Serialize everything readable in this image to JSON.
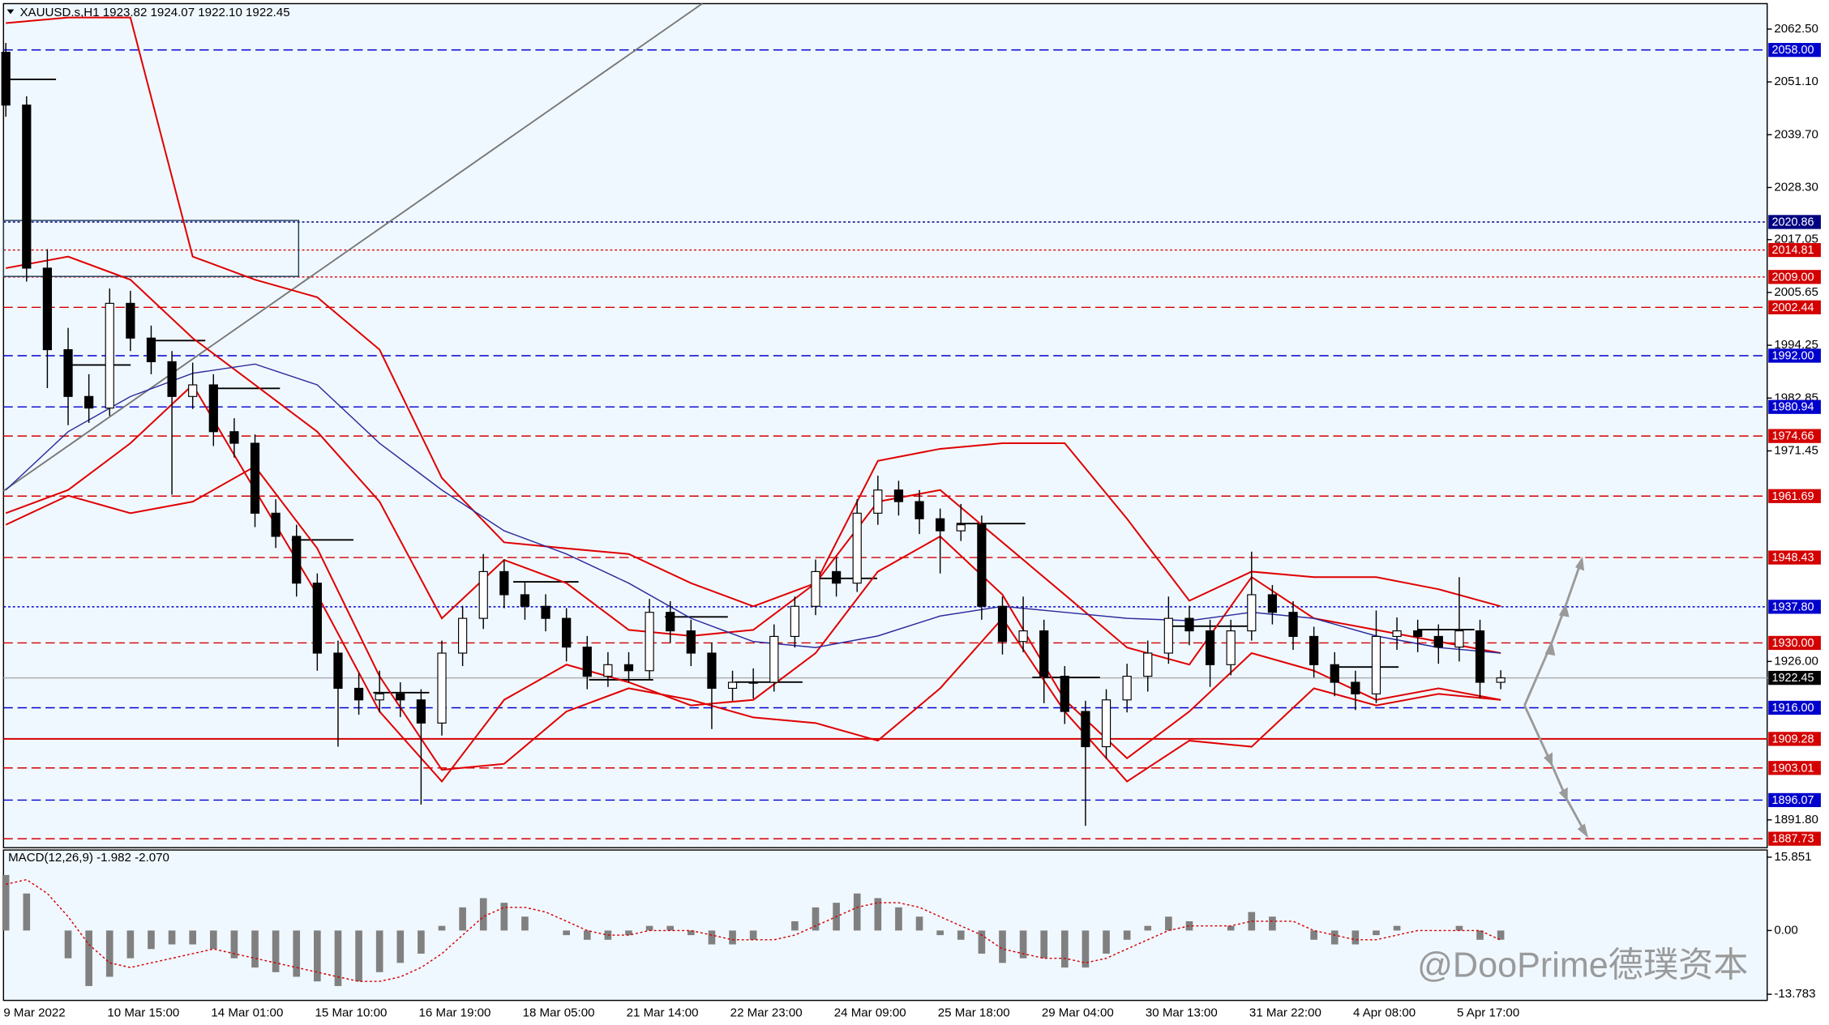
{
  "header": "XAUUSD.s,H1  1923.82 1924.07 1922.10 1922.45",
  "watermark": "@DooPrime德璞资本",
  "chart_data": [
    {
      "type": "candlestick",
      "categories": [
        "9 Mar 2022",
        null,
        null,
        null,
        null,
        "10 Mar 15:00",
        null,
        null,
        null,
        null,
        "14 Mar 01:00",
        null,
        null,
        null,
        null,
        "15 Mar 10:00",
        null,
        null,
        null,
        null,
        "16 Mar 19:00",
        null,
        null,
        null,
        null,
        "18 Mar 05:00",
        null,
        null,
        null,
        null,
        "21 Mar 14:00",
        null,
        null,
        null,
        null,
        "22 Mar 23:00",
        null,
        null,
        null,
        null,
        "24 Mar 09:00",
        null,
        null,
        null,
        null,
        "25 Mar 18:00",
        null,
        null,
        null,
        null,
        "29 Mar 04:00",
        null,
        null,
        null,
        null,
        "30 Mar 13:00",
        null,
        null,
        null,
        null,
        "31 Mar 22:00",
        null,
        null,
        null,
        null,
        "4 Apr 08:00",
        null,
        null,
        null,
        null,
        "5 Apr 17:00",
        null,
        null
      ],
      "open": [
        2057.5,
        2046.1,
        2010.9,
        1993.3,
        1983.2,
        1980.7,
        2003.3,
        1995.8,
        1990.7,
        1983.2,
        1985.7,
        1975.6,
        1973.1,
        1958.0,
        1953.0,
        1942.9,
        1927.8,
        1920.2,
        1917.7,
        1919.0,
        1917.7,
        1912.7,
        1927.8,
        1935.3,
        1945.4,
        1940.4,
        1937.9,
        1935.3,
        1929.1,
        1922.8,
        1925.3,
        1924.0,
        1936.6,
        1932.6,
        1927.8,
        1920.2,
        1921.5,
        1921.5,
        1931.4,
        1937.9,
        1945.4,
        1942.9,
        1958.0,
        1963.0,
        1960.5,
        1956.8,
        1954.2,
        1955.5,
        1937.9,
        1930.3,
        1932.6,
        1922.8,
        1915.2,
        1907.6,
        1917.7,
        1922.8,
        1927.8,
        1935.3,
        1932.6,
        1925.3,
        1932.6,
        1940.4,
        1936.6,
        1931.4,
        1925.3,
        1921.5,
        1919.0,
        1931.4,
        1932.6,
        1931.4,
        1929.1,
        1932.6,
        1921.5
      ],
      "high": [
        2059.5,
        2048.0,
        2015.0,
        1998.0,
        1988.0,
        2006.5,
        2006.0,
        1998.5,
        1993.0,
        1990.5,
        1988.0,
        1978.5,
        1975.0,
        1961.0,
        1955.5,
        1945.0,
        1930.5,
        1923.5,
        1924.0,
        1921.5,
        1920.0,
        1930.5,
        1938.0,
        1949.2,
        1948.0,
        1943.0,
        1940.5,
        1937.5,
        1931.5,
        1928.0,
        1928.0,
        1939.5,
        1939.0,
        1935.0,
        1930.0,
        1924.0,
        1924.5,
        1934.0,
        1940.0,
        1948.0,
        1948.5,
        1961.0,
        1966.1,
        1965.0,
        1963.0,
        1959.0,
        1960.0,
        1957.5,
        1940.0,
        1940.0,
        1935.0,
        1925.0,
        1917.5,
        1920.0,
        1925.5,
        1930.5,
        1940.0,
        1938.0,
        1935.0,
        1935.0,
        1949.7,
        1942.5,
        1939.0,
        1933.5,
        1928.0,
        1924.0,
        1937.0,
        1935.5,
        1935.0,
        1934.0,
        1944.2,
        1935.0,
        1924.1
      ],
      "low": [
        2043.6,
        2008.0,
        1985.0,
        1977.0,
        1977.5,
        1979.0,
        1993.0,
        1988.0,
        1962.0,
        1980.5,
        1972.5,
        1970.0,
        1955.0,
        1950.5,
        1940.0,
        1924.0,
        1907.6,
        1914.5,
        1915.0,
        1914.0,
        1895.1,
        1910.0,
        1925.0,
        1933.0,
        1937.5,
        1935.0,
        1932.5,
        1926.0,
        1920.0,
        1920.5,
        1921.5,
        1922.0,
        1930.0,
        1925.0,
        1911.4,
        1917.5,
        1918.0,
        1919.5,
        1929.0,
        1936.0,
        1940.0,
        1941.0,
        1955.5,
        1957.5,
        1953.5,
        1945.0,
        1952.0,
        1935.0,
        1927.5,
        1928.0,
        1917.0,
        1912.5,
        1890.5,
        1905.0,
        1915.0,
        1919.5,
        1925.5,
        1929.5,
        1920.5,
        1923.0,
        1930.5,
        1934.0,
        1928.5,
        1922.5,
        1918.5,
        1915.5,
        1917.0,
        1928.5,
        1928.0,
        1925.5,
        1926.0,
        1918.0,
        1920.0
      ],
      "close": [
        2046.1,
        2010.9,
        1993.3,
        1983.2,
        1980.7,
        2003.3,
        1995.8,
        1990.7,
        1983.2,
        1985.7,
        1975.6,
        1973.1,
        1958.0,
        1953.0,
        1942.9,
        1927.8,
        1920.2,
        1917.7,
        1919.0,
        1917.7,
        1912.7,
        1927.8,
        1935.3,
        1945.4,
        1940.4,
        1937.9,
        1935.3,
        1929.1,
        1922.8,
        1925.3,
        1924.0,
        1936.6,
        1932.6,
        1927.8,
        1920.2,
        1921.5,
        1921.5,
        1931.4,
        1937.9,
        1945.4,
        1942.9,
        1958.0,
        1963.0,
        1960.5,
        1956.8,
        1954.2,
        1955.5,
        1937.9,
        1930.3,
        1932.6,
        1922.8,
        1915.2,
        1907.6,
        1917.7,
        1922.8,
        1927.8,
        1935.3,
        1932.6,
        1925.3,
        1932.6,
        1940.4,
        1936.6,
        1931.4,
        1925.3,
        1921.5,
        1919.0,
        1931.4,
        1932.6,
        1931.4,
        1929.1,
        1932.6,
        1921.5,
        1922.45
      ],
      "up_color": "#ffffff",
      "down_color": "#000000",
      "ylim": [
        1885.8,
        2068.0
      ],
      "yticks": [
        {
          "value": 2062.5,
          "label": "2062.50"
        },
        {
          "value": 2051.1,
          "label": "2051.10"
        },
        {
          "value": 2039.7,
          "label": "2039.70"
        },
        {
          "value": 2028.3,
          "label": "2028.30"
        },
        {
          "value": 2017.05,
          "label": "2017.05"
        },
        {
          "value": 2005.65,
          "label": "2005.65"
        },
        {
          "value": 1994.25,
          "label": "1994.25"
        },
        {
          "value": 1982.85,
          "label": "1982.85"
        },
        {
          "value": 1971.45,
          "label": "1971.45"
        },
        {
          "value": 1926.0,
          "label": "1926.00"
        },
        {
          "value": 1891.8,
          "label": "1891.80"
        }
      ],
      "grid": false,
      "levels": [
        {
          "value": 2058.0,
          "label": "2058.00",
          "color": "#0000cd",
          "style": "dashed"
        },
        {
          "value": 2020.86,
          "label": "2020.86",
          "color": "#000080",
          "style": "dotted"
        },
        {
          "value": 2014.81,
          "label": "2014.81",
          "color": "#d40000",
          "style": "dotted"
        },
        {
          "value": 2009.0,
          "label": "2009.00",
          "color": "#d40000",
          "style": "dotted"
        },
        {
          "value": 2002.44,
          "label": "2002.44",
          "color": "#d40000",
          "style": "dashed"
        },
        {
          "value": 1992.0,
          "label": "1992.00",
          "color": "#0000cd",
          "style": "dashed"
        },
        {
          "value": 1980.94,
          "label": "1980.94",
          "color": "#0000cd",
          "style": "dashed"
        },
        {
          "value": 1974.66,
          "label": "1974.66",
          "color": "#d40000",
          "style": "dashed"
        },
        {
          "value": 1961.69,
          "label": "1961.69",
          "color": "#d40000",
          "style": "dashed"
        },
        {
          "value": 1948.43,
          "label": "1948.43",
          "color": "#d40000",
          "style": "dashed"
        },
        {
          "value": 1937.8,
          "label": "1937.80",
          "color": "#0000cd",
          "style": "dotted"
        },
        {
          "value": 1930.0,
          "label": "1930.00",
          "color": "#d40000",
          "style": "dashed"
        },
        {
          "value": 1922.45,
          "label": "1922.45",
          "color": "#000000",
          "style": "solid"
        },
        {
          "value": 1916.0,
          "label": "1916.00",
          "color": "#0000cd",
          "style": "dashed"
        },
        {
          "value": 1909.28,
          "label": "1909.28",
          "color": "#d40000",
          "style": "solid"
        },
        {
          "value": 1903.01,
          "label": "1903.01",
          "color": "#d40000",
          "style": "dashed"
        },
        {
          "value": 1896.07,
          "label": "1896.07",
          "color": "#0000cd",
          "style": "dashed"
        },
        {
          "value": 1887.73,
          "label": "1887.73",
          "color": "#d40000",
          "style": "dashed"
        }
      ],
      "overlays": [
        {
          "color": "#e00000",
          "x": [
            0,
            3,
            6,
            9,
            12,
            15,
            18,
            21,
            24,
            27,
            30,
            33,
            36,
            39,
            42,
            45,
            48,
            51,
            54,
            57,
            60,
            63,
            66,
            69,
            72
          ],
          "values": [
            2063.8,
            2065.0,
            2065.0,
            2013.4,
            2008.4,
            2004.6,
            1993.3,
            1965.6,
            1951.7,
            1950.4,
            1949.2,
            1942.9,
            1937.9,
            1942.9,
            1969.3,
            1971.9,
            1973.1,
            1973.1,
            1956.8,
            1939.1,
            1945.4,
            1944.2,
            1944.2,
            1941.6,
            1937.9
          ]
        },
        {
          "color": "#e00000",
          "x": [
            0,
            3,
            6,
            9,
            12,
            15,
            18,
            21,
            24,
            27,
            30,
            33,
            36,
            39,
            42,
            45,
            48,
            51,
            54,
            57,
            60,
            63,
            66,
            69,
            72
          ],
          "values": [
            1955.5,
            1961.8,
            1958.0,
            1960.5,
            1968.1,
            1950.4,
            1922.8,
            1902.6,
            1903.9,
            1915.2,
            1920.2,
            1917.7,
            1913.9,
            1912.7,
            1908.9,
            1920.2,
            1935.3,
            1915.2,
            1900.1,
            1908.9,
            1907.6,
            1920.2,
            1916.5,
            1919.0,
            1917.7
          ]
        },
        {
          "color": "#e00000",
          "x": [
            0,
            3,
            6,
            9,
            12,
            15,
            18,
            21,
            24,
            27,
            30,
            33,
            36,
            39,
            42,
            45,
            48,
            51,
            54,
            57,
            60,
            63,
            66,
            69,
            72
          ],
          "values": [
            2010.9,
            2013.4,
            2008.4,
            1995.8,
            1985.7,
            1975.6,
            1960.5,
            1935.3,
            1947.9,
            1942.9,
            1932.8,
            1931.5,
            1932.8,
            1942.9,
            1960.5,
            1963.0,
            1951.7,
            1940.4,
            1929.0,
            1925.3,
            1944.2,
            1935.3,
            1932.8,
            1930.3,
            1927.8
          ]
        },
        {
          "color": "#e00000",
          "x": [
            0,
            3,
            6,
            9,
            12,
            15,
            18,
            21,
            24,
            27,
            30,
            33,
            36,
            39,
            42,
            45,
            48,
            51,
            54,
            57,
            60,
            63,
            66,
            69,
            72
          ],
          "values": [
            1958.0,
            1963.0,
            1973.1,
            1985.7,
            1963.0,
            1940.4,
            1915.2,
            1900.1,
            1917.7,
            1925.3,
            1921.5,
            1916.5,
            1917.7,
            1927.8,
            1945.4,
            1953.0,
            1940.4,
            1917.7,
            1905.1,
            1915.2,
            1927.8,
            1924.0,
            1917.7,
            1920.2,
            1917.7
          ]
        },
        {
          "color": "#2b2b9c",
          "x": [
            0,
            3,
            6,
            9,
            12,
            15,
            18,
            21,
            24,
            27,
            30,
            33,
            36,
            39,
            42,
            45,
            48,
            51,
            54,
            57,
            60,
            63,
            66,
            69,
            72
          ],
          "values": [
            1963.0,
            1975.6,
            1983.2,
            1988.2,
            1990.2,
            1985.7,
            1973.1,
            1963.0,
            1954.2,
            1949.2,
            1942.9,
            1935.3,
            1930.3,
            1929.0,
            1931.5,
            1935.8,
            1937.9,
            1936.6,
            1935.3,
            1934.8,
            1936.6,
            1935.3,
            1931.5,
            1929.0,
            1927.8
          ]
        }
      ]
    },
    {
      "type": "macd",
      "title": "MACD(12,26,9) -1.982 -2.070",
      "values": [
        12,
        8,
        0,
        -6,
        -12,
        -10,
        -6,
        -4,
        -3,
        -3,
        -4,
        -6,
        -8,
        -9,
        -10,
        -11,
        -12,
        -11,
        -9,
        -7,
        -5,
        1,
        5,
        7,
        6,
        3,
        0,
        -1,
        -2,
        -2,
        -1,
        1,
        1,
        -1,
        -3,
        -3,
        -2,
        0,
        2,
        5,
        6,
        8,
        7,
        5,
        3,
        -1,
        -2,
        -5,
        -7,
        -6,
        -6,
        -8,
        -8,
        -5,
        -2,
        1,
        3,
        2,
        0,
        1,
        4,
        3,
        0,
        -2,
        -3,
        -3,
        -1,
        1,
        0,
        0,
        1,
        -2,
        -1.98
      ],
      "signal": [
        10,
        11,
        8,
        3,
        -3,
        -7,
        -8,
        -7,
        -6,
        -5,
        -4,
        -5,
        -6,
        -7,
        -8,
        -9,
        -10,
        -11,
        -11,
        -10,
        -8,
        -5,
        -1,
        3,
        5,
        5,
        4,
        2,
        0,
        -1,
        -1,
        0,
        0,
        0,
        -1,
        -2,
        -2,
        -2,
        -1,
        1,
        3,
        5,
        6,
        6,
        5,
        3,
        1,
        -1,
        -4,
        -5,
        -6,
        -6,
        -7,
        -6,
        -4,
        -2,
        0,
        1,
        1,
        1,
        2,
        2,
        2,
        0,
        -1,
        -2,
        -2,
        -1,
        0,
        0,
        0,
        0,
        -2.07
      ],
      "color": "#808080",
      "signal_color": "#d40000",
      "ylim": [
        -15.1,
        17.4
      ],
      "yticks": [
        15.851,
        {
          "value": 0,
          "label": "0.00"
        },
        -13.783
      ]
    }
  ]
}
